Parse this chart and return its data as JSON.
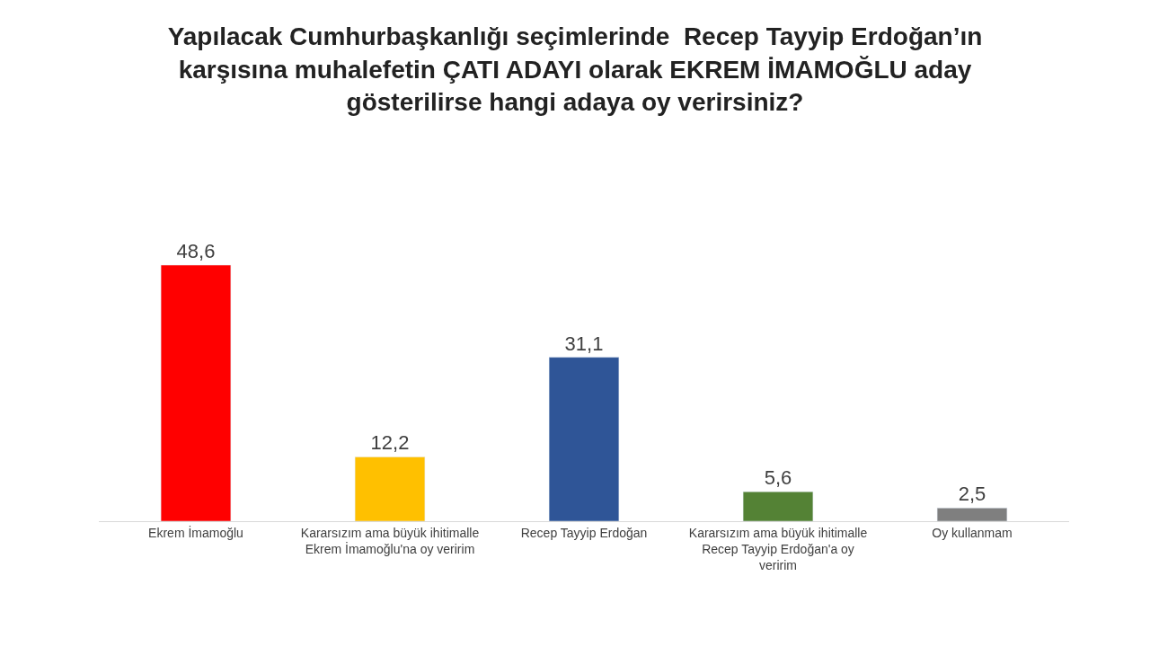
{
  "chart_data": {
    "type": "bar",
    "title": "Yapılacak Cumhurbaşkanlığı seçimlerinde  Recep Tayyip Erdoğan’ın\nkarşısına muhalefetin ÇATI ADAYI olarak EKREM İMAMOĞLU aday\ngösterilirse hangi adaya oy verirsiniz?",
    "categories": [
      "Ekrem İmamoğlu",
      "Kararsızım ama büyük ihitimalle\nEkrem İmamoğlu'na oy veririm",
      "Recep Tayyip Erdoğan",
      "Kararsızım ama büyük ihitimalle\nRecep Tayyip Erdoğan'a oy\nveririm",
      "Oy kullanmam"
    ],
    "values": [
      48.6,
      12.2,
      31.1,
      5.6,
      2.5
    ],
    "colors": [
      "#ff0000",
      "#ffc000",
      "#2f5597",
      "#548235",
      "#7f7f7f"
    ],
    "value_labels": [
      "48,6",
      "12,2",
      "31,1",
      "5,6",
      "2,5"
    ],
    "legend": false
  }
}
